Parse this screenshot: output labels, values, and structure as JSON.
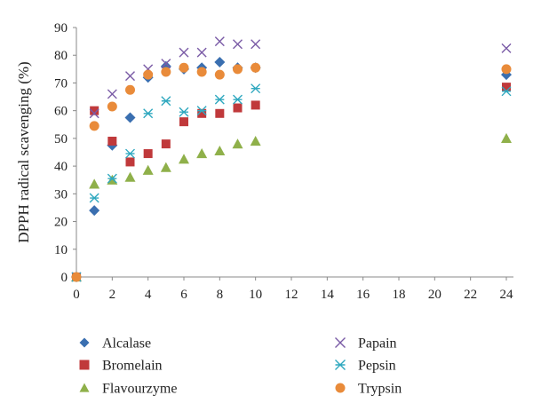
{
  "chart_data": {
    "type": "scatter",
    "title": "",
    "xlabel": "",
    "ylabel": "DPPH radical scavenging (%)",
    "xlim": [
      0,
      24
    ],
    "ylim": [
      0,
      90
    ],
    "x_ticks": [
      "0",
      "2",
      "4",
      "6",
      "8",
      "10",
      "12",
      "14",
      "16",
      "18",
      "20",
      "22",
      "24"
    ],
    "y_ticks": [
      "0",
      "10",
      "20",
      "30",
      "40",
      "50",
      "60",
      "70",
      "80",
      "90"
    ],
    "grid": false,
    "legend_position": "bottom",
    "x": [
      0,
      1,
      2,
      3,
      4,
      5,
      6,
      7,
      8,
      9,
      10,
      24
    ],
    "series": [
      {
        "name": "Alcalase",
        "marker": "diamond",
        "color": "#3a6fb0",
        "values": [
          0,
          24,
          47.5,
          57.5,
          72,
          76,
          75,
          75.5,
          77.5,
          75.5,
          75.5,
          73
        ]
      },
      {
        "name": "Bromelain",
        "marker": "square",
        "color": "#c0393b",
        "values": [
          0,
          60,
          49,
          41.5,
          44.5,
          48,
          56,
          59,
          59,
          61,
          62,
          68.5
        ]
      },
      {
        "name": "Flavourzyme",
        "marker": "triangle",
        "color": "#8fb04a",
        "values": [
          0,
          33.5,
          35,
          36,
          38.5,
          39.5,
          42.5,
          44.5,
          45.5,
          48,
          49,
          50
        ]
      },
      {
        "name": "Papain",
        "marker": "x",
        "color": "#7a5ba6",
        "values": [
          0,
          59,
          66,
          72.5,
          75,
          77,
          81,
          81,
          85,
          84,
          84,
          82.5
        ]
      },
      {
        "name": "Pepsin",
        "marker": "asterisk",
        "color": "#2fa8bf",
        "values": [
          0,
          28.5,
          35.5,
          44.5,
          59,
          63.5,
          59.5,
          60,
          64,
          64,
          68,
          67
        ]
      },
      {
        "name": "Trypsin",
        "marker": "circle",
        "color": "#e98b3a",
        "values": [
          0,
          54.5,
          61.5,
          67.5,
          73,
          74,
          75.5,
          74,
          73,
          75,
          75.5,
          75
        ]
      }
    ]
  }
}
